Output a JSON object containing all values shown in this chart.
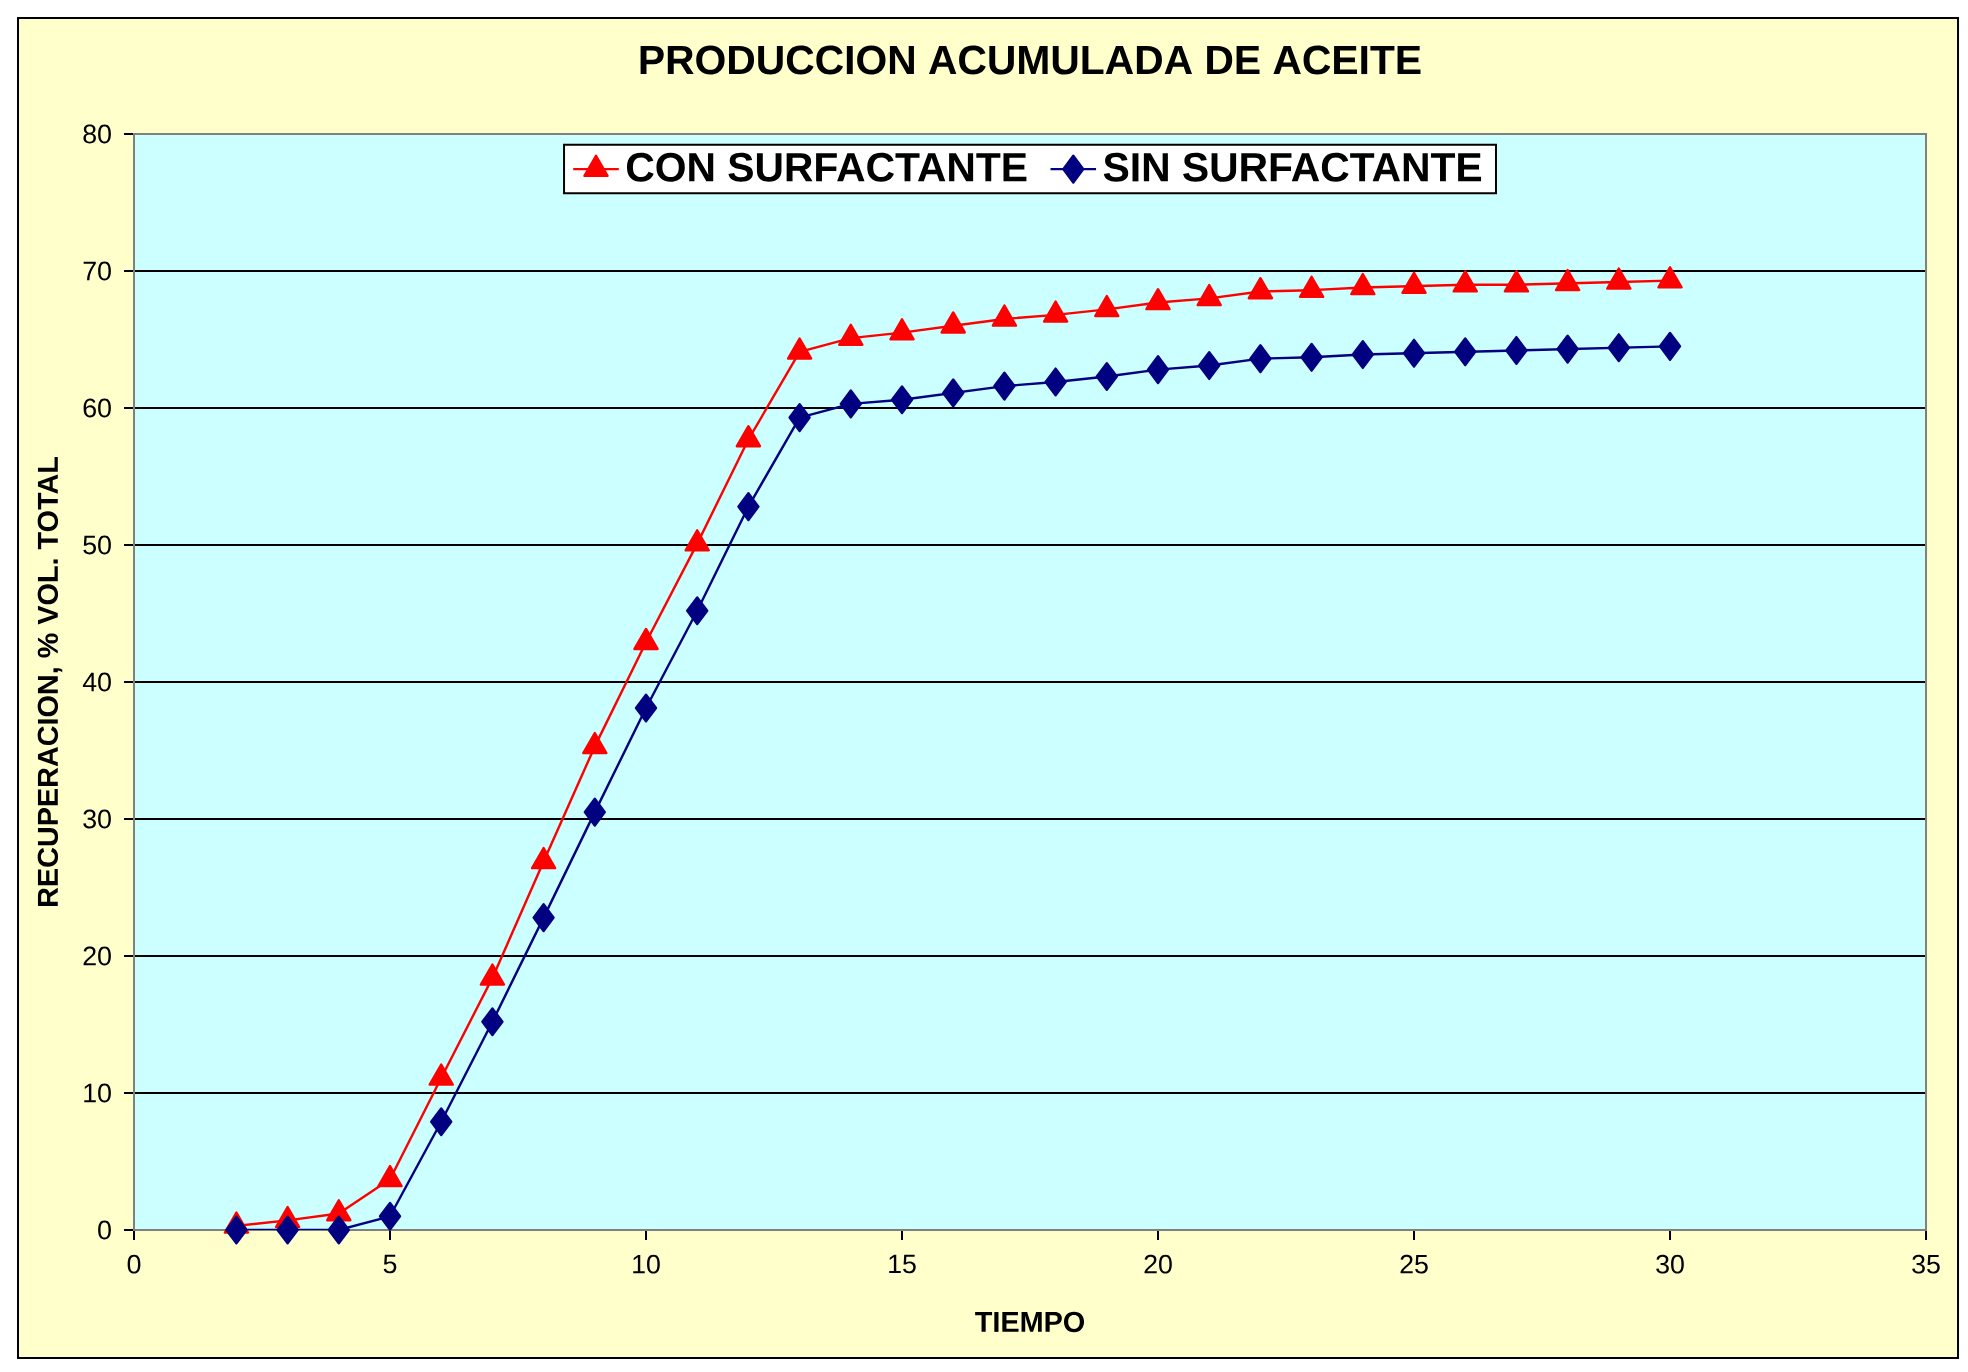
{
  "chart_data": {
    "type": "line",
    "title": "PRODUCCION ACUMULADA DE ACEITE",
    "xlabel": "TIEMPO",
    "ylabel": "RECUPERACION, % VOL. TOTAL",
    "x": [
      2,
      3,
      4,
      5,
      6,
      7,
      8,
      9,
      10,
      11,
      12,
      13,
      14,
      15,
      16,
      17,
      18,
      19,
      20,
      21,
      22,
      23,
      24,
      25,
      26,
      27,
      28,
      29,
      30
    ],
    "series": [
      {
        "name": "CON SURFACTANTE",
        "color": "#ff0000",
        "marker": "triangle",
        "values": [
          0.3,
          0.7,
          1.2,
          3.7,
          11.1,
          18.4,
          26.9,
          35.3,
          42.9,
          50.1,
          57.7,
          64.1,
          65.1,
          65.5,
          66.0,
          66.5,
          66.8,
          67.2,
          67.7,
          68.0,
          68.5,
          68.6,
          68.8,
          68.9,
          69.0,
          69.0,
          69.1,
          69.2,
          69.3
        ]
      },
      {
        "name": "SIN SURFACTANTE",
        "color": "#000080",
        "marker": "diamond",
        "values": [
          0,
          0,
          0,
          1.0,
          7.9,
          15.2,
          22.8,
          30.5,
          38.1,
          45.2,
          52.8,
          59.3,
          60.3,
          60.6,
          61.1,
          61.6,
          61.9,
          62.3,
          62.8,
          63.1,
          63.6,
          63.7,
          63.9,
          64.0,
          64.1,
          64.2,
          64.3,
          64.4,
          64.5
        ]
      }
    ],
    "xlim": [
      0,
      35
    ],
    "xticks": [
      0,
      5,
      10,
      15,
      20,
      25,
      30,
      35
    ],
    "ylim": [
      0,
      80
    ],
    "yticks": [
      0,
      10,
      20,
      30,
      40,
      50,
      60,
      70,
      80
    ],
    "grid": "y",
    "legend": "top",
    "line_style": "solid"
  }
}
